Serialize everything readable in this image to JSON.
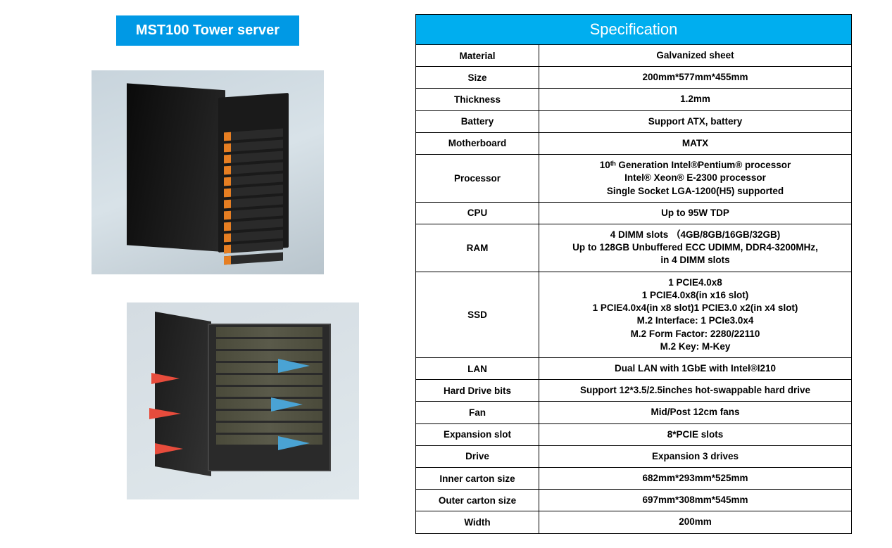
{
  "title": "MST100 Tower server",
  "spec_header": "Specification",
  "colors": {
    "brand_blue": "#0099e5",
    "spec_blue": "#00aeef",
    "white": "#ffffff",
    "border": "#000000",
    "drive_accent": "#e67e22",
    "airflow_in": "#4aa3d4",
    "airflow_out": "#e74c3c",
    "chassis_dark": "#1a1a1a"
  },
  "specs": [
    {
      "label": "Material",
      "value": "Galvanized sheet"
    },
    {
      "label": "Size",
      "value": "200mm*577mm*455mm"
    },
    {
      "label": "Thickness",
      "value": "1.2mm"
    },
    {
      "label": "Battery",
      "value": "Support ATX, battery"
    },
    {
      "label": "Motherboard",
      "value": "MATX"
    },
    {
      "label": "Processor",
      "value": "10ᵗʰ Generation Intel®Pentium® processor\nIntel® Xeon®   E-2300 processor\nSingle Socket LGA-1200(H5) supported"
    },
    {
      "label": "CPU",
      "value": "Up to 95W TDP"
    },
    {
      "label": "RAM",
      "value": "4 DIMM slots （4GB/8GB/16GB/32GB)\nUp to 128GB Unbuffered ECC UDIMM, DDR4-3200MHz,\nin 4 DIMM slots"
    },
    {
      "label": "SSD",
      "value": "1 PCIE4.0x8\n1 PCIE4.0x8(in x16 slot)\n1 PCIE4.0x4(in x8 slot)1 PCIE3.0 x2(in x4 slot)\nM.2 Interface: 1 PCIe3.0x4\nM.2 Form Factor: 2280/22110\nM.2 Key: M-Key"
    },
    {
      "label": "LAN",
      "value": "Dual LAN with 1GbE with Intel®I210"
    },
    {
      "label": "Hard Drive bits",
      "value": "Support 12*3.5/2.5inches hot-swappable hard drive"
    },
    {
      "label": "Fan",
      "value": "Mid/Post 12cm fans"
    },
    {
      "label": "Expansion slot",
      "value": "8*PCIE slots"
    },
    {
      "label": "Drive",
      "value": "Expansion 3 drives"
    },
    {
      "label": "Inner carton size",
      "value": "682mm*293mm*525mm"
    },
    {
      "label": "Outer carton size",
      "value": "697mm*308mm*545mm"
    },
    {
      "label": "Width",
      "value": "200mm"
    }
  ]
}
